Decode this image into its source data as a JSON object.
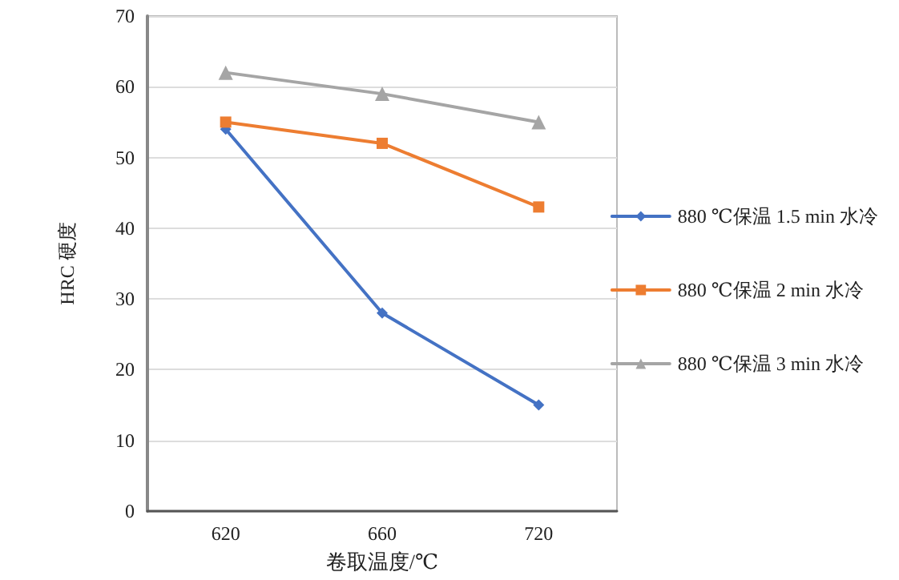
{
  "chart_data": {
    "type": "line",
    "xlabel": "卷取温度/℃",
    "ylabel": "HRC 硬度",
    "categories": [
      "620",
      "660",
      "720"
    ],
    "series": [
      {
        "name": "880 ℃保温 1.5 min 水冷",
        "color": "#4472c4",
        "marker": "diamond",
        "values": [
          54,
          28,
          15
        ]
      },
      {
        "name": "880 ℃保温 2 min 水冷",
        "color": "#ed7d31",
        "marker": "square",
        "values": [
          55,
          52,
          43
        ]
      },
      {
        "name": "880 ℃保温 3 min 水冷",
        "color": "#a5a5a5",
        "marker": "triangle",
        "values": [
          62,
          59,
          55
        ]
      }
    ],
    "ylim": [
      0,
      70
    ],
    "yticks": [
      0,
      10,
      20,
      30,
      40,
      50,
      60,
      70
    ],
    "grid": "y",
    "legend": "right",
    "line_style": "solid"
  }
}
